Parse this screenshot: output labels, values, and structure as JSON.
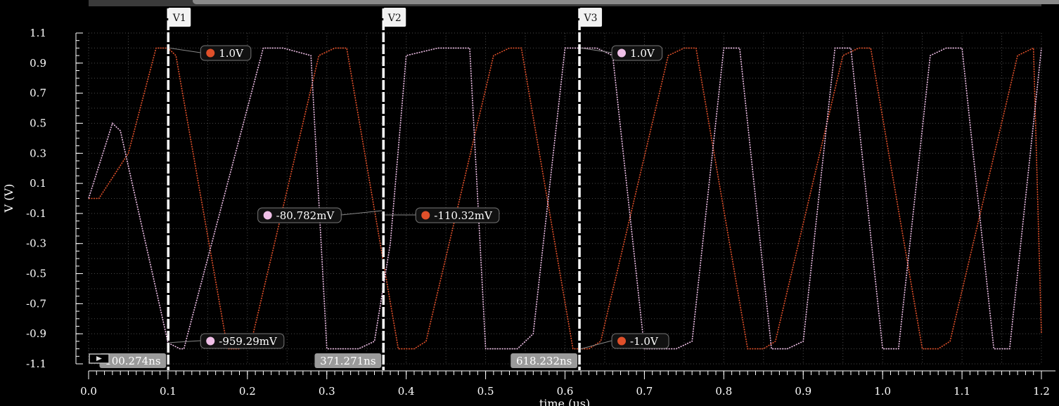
{
  "window": {
    "play_icon": "play-icon"
  },
  "chart_data": {
    "type": "line",
    "title": "",
    "xlabel": "time (μs)",
    "ylabel": "V (V)",
    "xlim": [
      0.0,
      1.2
    ],
    "ylim": [
      -1.1,
      1.1
    ],
    "grid": true,
    "x_ticks": [
      "0.0",
      "0.1",
      "0.2",
      "0.3",
      "0.4",
      "0.5",
      "0.6",
      "0.7",
      "0.8",
      "0.9",
      "1.0",
      "1.1",
      "1.2"
    ],
    "y_ticks": [
      "1.1",
      "0.9",
      "0.7",
      "0.5",
      "0.3",
      "0.1",
      "-0.1",
      "-0.3",
      "-0.5",
      "-0.7",
      "-0.9",
      "-1.1"
    ],
    "series": [
      {
        "color": "#e0502a",
        "x": [
          0.0,
          0.013,
          0.05,
          0.085,
          0.1,
          0.11,
          0.175,
          0.19,
          0.205,
          0.29,
          0.31,
          0.325,
          0.39,
          0.41,
          0.425,
          0.51,
          0.53,
          0.545,
          0.61,
          0.63,
          0.645,
          0.73,
          0.75,
          0.765,
          0.83,
          0.85,
          0.865,
          0.95,
          0.97,
          0.985,
          1.05,
          1.07,
          1.085,
          1.17,
          1.19,
          1.2
        ],
        "y": [
          0.0,
          0.0,
          0.3,
          1.0,
          1.0,
          0.95,
          -1.0,
          -1.0,
          -0.95,
          0.95,
          1.0,
          1.0,
          -1.0,
          -1.0,
          -0.95,
          0.95,
          1.0,
          1.0,
          -1.0,
          -1.0,
          -0.95,
          0.95,
          1.0,
          1.0,
          -1.0,
          -1.0,
          -0.95,
          0.95,
          1.0,
          1.0,
          -1.0,
          -1.0,
          -0.95,
          0.95,
          1.0,
          -0.9
        ]
      },
      {
        "color": "#f0c0e8",
        "x": [
          0.0,
          0.03,
          0.04,
          0.1,
          0.115,
          0.12,
          0.22,
          0.24,
          0.245,
          0.28,
          0.3,
          0.34,
          0.36,
          0.38,
          0.4,
          0.44,
          0.48,
          0.5,
          0.54,
          0.56,
          0.6,
          0.62,
          0.64,
          0.66,
          0.7,
          0.74,
          0.76,
          0.8,
          0.82,
          0.86,
          0.88,
          0.9,
          0.94,
          0.96,
          1.0,
          1.02,
          1.06,
          1.08,
          1.1,
          1.14,
          1.16,
          1.2
        ],
        "y": [
          0.0,
          0.5,
          0.45,
          -0.96,
          -1.0,
          -1.0,
          1.0,
          1.0,
          1.0,
          0.95,
          -1.0,
          -1.0,
          -0.95,
          -0.3,
          0.95,
          1.0,
          1.0,
          -1.0,
          -1.0,
          -0.9,
          1.0,
          1.0,
          1.0,
          0.95,
          -1.0,
          -1.0,
          -0.95,
          1.0,
          1.0,
          -1.0,
          -1.0,
          -0.95,
          1.0,
          1.0,
          -1.0,
          -1.0,
          0.95,
          1.0,
          1.0,
          -1.0,
          -1.0,
          1.0
        ]
      }
    ],
    "cursors": [
      {
        "label": "V1",
        "x": 0.1003,
        "time": "100.274ns"
      },
      {
        "label": "V2",
        "x": 0.3713,
        "time": "371.271ns"
      },
      {
        "label": "V3",
        "x": 0.6182,
        "time": "618.232ns"
      }
    ],
    "markers": [
      {
        "cursor": "V1",
        "text": "1.0V",
        "color": "#e0502a",
        "y": 1.0,
        "side": "right"
      },
      {
        "cursor": "V1",
        "text": "-959.29mV",
        "color": "#f0c0e8",
        "y": -0.959,
        "side": "right"
      },
      {
        "cursor": "V2",
        "text": "-80.782mV",
        "color": "#f0c0e8",
        "y": -0.081,
        "side": "left"
      },
      {
        "cursor": "V2",
        "text": "-110.32mV",
        "color": "#e0502a",
        "y": -0.11,
        "side": "right"
      },
      {
        "cursor": "V3",
        "text": "1.0V",
        "color": "#f0c0e8",
        "y": 1.0,
        "side": "right"
      },
      {
        "cursor": "V3",
        "text": "-1.0V",
        "color": "#e0502a",
        "y": -1.0,
        "side": "right"
      }
    ]
  }
}
